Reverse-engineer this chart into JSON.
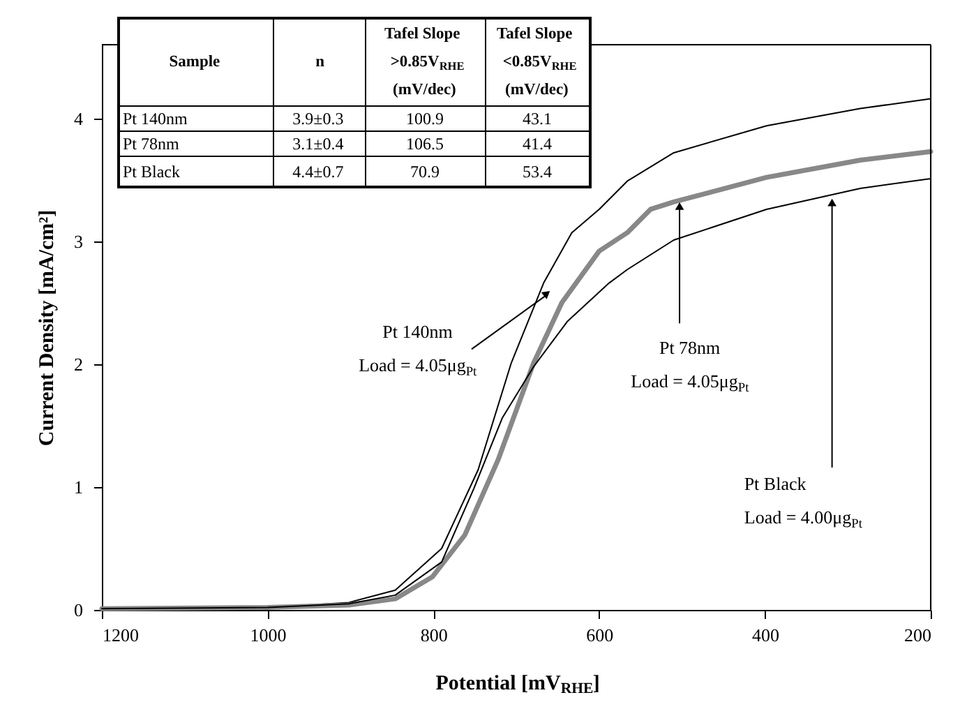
{
  "chart_data": {
    "type": "line",
    "xlabel": "Potential [mV$_{RHE}$]",
    "ylabel": "Current Density [mA/cm²]",
    "xlim": [
      1200,
      200
    ],
    "xticks": [
      1200,
      1000,
      800,
      600,
      400,
      200
    ],
    "ylim": [
      0,
      4.6
    ],
    "yticks": [
      0,
      1,
      2,
      3,
      4
    ],
    "grid": false,
    "marker": "none",
    "line_style": "solid",
    "series": [
      {
        "color": "#000000",
        "x": [
          1200,
          1000,
          902,
          846,
          790,
          746,
          706,
          667,
          633,
          600,
          566,
          510,
          398,
          285,
          200
        ],
        "values": [
          0.01,
          0.02,
          0.06,
          0.16,
          0.5,
          1.14,
          2.01,
          2.66,
          3.07,
          3.26,
          3.49,
          3.72,
          3.94,
          4.08,
          4.16
        ]
      },
      {
        "color": "#888888",
        "x": [
          1200,
          1000,
          902,
          846,
          801,
          762,
          722,
          679,
          645,
          600,
          566,
          538,
          510,
          398,
          285,
          200
        ],
        "values": [
          0.01,
          0.02,
          0.04,
          0.09,
          0.27,
          0.61,
          1.22,
          2.01,
          2.5,
          2.92,
          3.07,
          3.26,
          3.32,
          3.52,
          3.66,
          3.73
        ]
      },
      {
        "color": "#000000",
        "x": [
          1200,
          1000,
          902,
          846,
          790,
          751,
          717,
          679,
          638,
          588,
          566,
          510,
          398,
          285,
          200
        ],
        "values": [
          0.01,
          0.02,
          0.05,
          0.12,
          0.39,
          0.99,
          1.56,
          1.98,
          2.35,
          2.66,
          2.77,
          3.01,
          3.26,
          3.43,
          3.51
        ]
      }
    ],
    "annotations": [
      {
        "text": "Pt 140nm\nLoad = 4.05μg$_{Pt}$",
        "x": 663,
        "y": 2.61
      },
      {
        "text": "Pt 78nm\nLoad = 4.05μg$_{Pt}$",
        "x": 503,
        "y": 3.32
      },
      {
        "text": "Pt Black\nLoad = 4.00μg$_{Pt}$",
        "x": 319,
        "y": 3.35
      },
      "Sample",
      "n",
      "Tafel Slope\n>0.85V$_{RHE}$\n(mV/dec)",
      "Tafel Slope\n<0.85V$_{RHE}$\n(mV/dec)",
      "Pt 140nm",
      "3.9±0.3",
      "100.9",
      "43.1",
      "Pt 78nm",
      "3.1±0.4",
      "106.5",
      "41.4",
      "Pt Black",
      "4.4±0.7",
      "70.9",
      "53.4"
    ]
  }
}
